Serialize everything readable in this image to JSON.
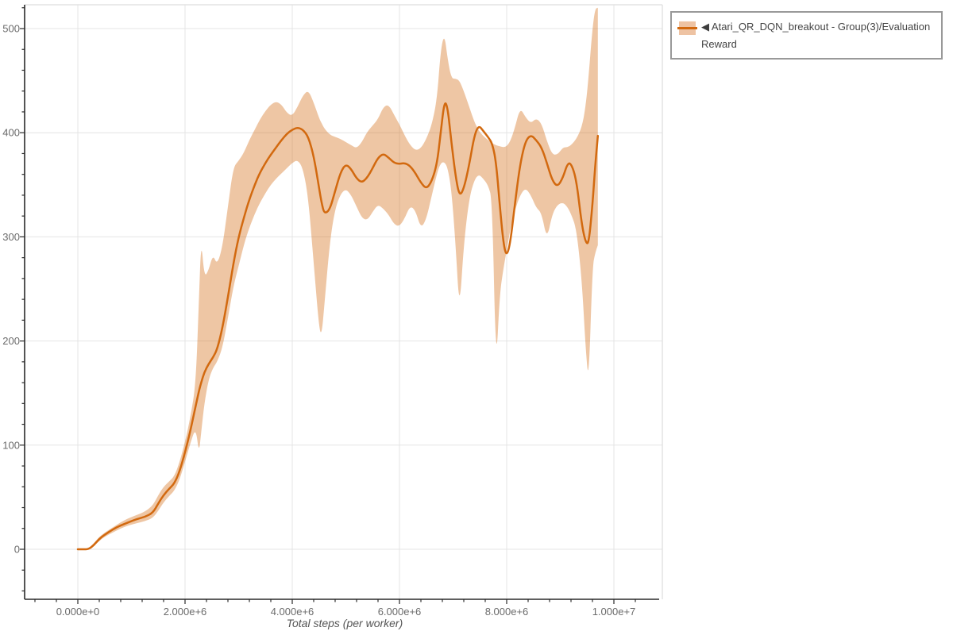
{
  "page": {
    "background": "#ffffff"
  },
  "legend": {
    "marker": "◀",
    "entries": [
      {
        "label": "Atari_QR_DQN_breakout - Group(3)/Evaluation Reward",
        "color": "#d2690f"
      }
    ]
  },
  "chart_data": {
    "type": "line",
    "title": "",
    "xlabel": "Total steps (per worker)",
    "ylabel": "",
    "grid": true,
    "legend_position": "top-right-outside",
    "xlim": [
      -990000,
      10760000
    ],
    "ylim": [
      -48,
      522
    ],
    "x_ticks": {
      "values": [
        0,
        2000000,
        4000000,
        6000000,
        8000000,
        10000000
      ],
      "labels": [
        "0.000e+0",
        "2.000e+6",
        "4.000e+6",
        "6.000e+6",
        "8.000e+6",
        "1.000e+7"
      ],
      "minor_step": 400000
    },
    "y_ticks": {
      "values": [
        0,
        100,
        200,
        300,
        400,
        500
      ],
      "labels": [
        "0",
        "100",
        "200",
        "300",
        "400",
        "500"
      ],
      "minor_step": 20
    },
    "series": [
      {
        "name": "Atari_QR_DQN_breakout - Group(3)/Evaluation Reward",
        "line_color": "#d2690f",
        "band_opacity": 0.38,
        "x": [
          0,
          100000,
          200000,
          300000,
          400000,
          500000,
          650000,
          800000,
          950000,
          1100000,
          1250000,
          1400000,
          1500000,
          1600000,
          1700000,
          1800000,
          1900000,
          2000000,
          2100000,
          2200000,
          2260000,
          2300000,
          2360000,
          2440000,
          2520000,
          2600000,
          2700000,
          2800000,
          2900000,
          3000000,
          3100000,
          3200000,
          3300000,
          3400000,
          3500000,
          3600000,
          3700000,
          3800000,
          3900000,
          4000000,
          4100000,
          4200000,
          4300000,
          4400000,
          4500000,
          4550000,
          4600000,
          4700000,
          4800000,
          4900000,
          5000000,
          5100000,
          5200000,
          5300000,
          5400000,
          5500000,
          5600000,
          5700000,
          5800000,
          5900000,
          6000000,
          6100000,
          6200000,
          6300000,
          6400000,
          6500000,
          6600000,
          6700000,
          6770000,
          6840000,
          6900000,
          6970000,
          7050000,
          7120000,
          7200000,
          7300000,
          7400000,
          7480000,
          7560000,
          7650000,
          7730000,
          7800000,
          7870000,
          7940000,
          8000000,
          8070000,
          8150000,
          8250000,
          8350000,
          8450000,
          8550000,
          8650000,
          8750000,
          8850000,
          8950000,
          9050000,
          9130000,
          9200000,
          9300000,
          9400000,
          9470000,
          9530000,
          9600000,
          9650000,
          9700000
        ],
        "y": [
          0,
          0,
          0,
          4,
          10,
          14,
          19,
          23,
          26,
          29,
          31,
          35,
          44,
          52,
          58,
          63,
          75,
          93,
          114,
          138,
          152,
          160,
          170,
          178,
          184,
          192,
          213,
          242,
          274,
          300,
          319,
          336,
          350,
          362,
          371,
          379,
          386,
          393,
          399,
          403,
          405,
          403,
          396,
          378,
          347,
          332,
          322,
          326,
          344,
          362,
          370,
          365,
          356,
          352,
          357,
          366,
          376,
          380,
          376,
          371,
          370,
          371,
          368,
          361,
          352,
          346,
          353,
          370,
          400,
          431,
          424,
          390,
          357,
          339,
          346,
          369,
          398,
          407,
          402,
          396,
          390,
          373,
          331,
          293,
          281,
          295,
          330,
          370,
          392,
          398,
          393,
          386,
          371,
          354,
          348,
          357,
          370,
          371,
          355,
          312,
          295,
          293,
          330,
          368,
          397
        ],
        "y_upper": [
          0,
          0,
          1,
          6,
          12,
          16,
          21,
          26,
          30,
          33,
          36,
          42,
          52,
          60,
          65,
          70,
          84,
          103,
          127,
          158,
          240,
          298,
          261,
          268,
          283,
          273,
          291,
          329,
          367,
          373,
          381,
          393,
          403,
          413,
          421,
          427,
          430,
          427,
          419,
          416,
          425,
          436,
          441,
          429,
          414,
          409,
          404,
          398,
          396,
          394,
          391,
          388,
          385,
          391,
          401,
          407,
          413,
          425,
          427,
          417,
          408,
          397,
          388,
          383,
          385,
          394,
          407,
          432,
          480,
          495,
          470,
          452,
          452,
          450,
          440,
          425,
          410,
          402,
          397,
          393,
          390,
          388,
          387,
          386,
          387,
          392,
          404,
          424,
          415,
          409,
          414,
          409,
          392,
          379,
          379,
          386,
          386,
          388,
          394,
          405,
          424,
          455,
          500,
          519,
          520
        ],
        "y_lower": [
          0,
          0,
          0,
          3,
          8,
          12,
          16,
          20,
          23,
          25,
          27,
          30,
          37,
          45,
          51,
          56,
          67,
          84,
          102,
          117,
          92,
          112,
          140,
          163,
          174,
          180,
          194,
          222,
          252,
          272,
          293,
          309,
          322,
          333,
          342,
          350,
          356,
          361,
          366,
          371,
          374,
          366,
          337,
          275,
          212,
          206,
          235,
          295,
          327,
          341,
          346,
          340,
          329,
          318,
          316,
          324,
          331,
          327,
          321,
          312,
          310,
          318,
          330,
          325,
          308,
          317,
          339,
          361,
          371,
          372,
          366,
          345,
          290,
          228,
          293,
          337,
          355,
          360,
          356,
          350,
          336,
          172,
          245,
          270,
          287,
          308,
          325,
          340,
          347,
          340,
          328,
          323,
          297,
          322,
          331,
          333,
          329,
          322,
          308,
          260,
          195,
          158,
          270,
          285,
          292
        ]
      }
    ]
  },
  "colors": {
    "axis": "#2a2a2a",
    "grid": "#e4e4e4",
    "frame": "#dddddd",
    "tick_label": "#6b6b6b",
    "axis_label": "#555555",
    "legend_text": "#444444",
    "legend_border": "#999999"
  }
}
